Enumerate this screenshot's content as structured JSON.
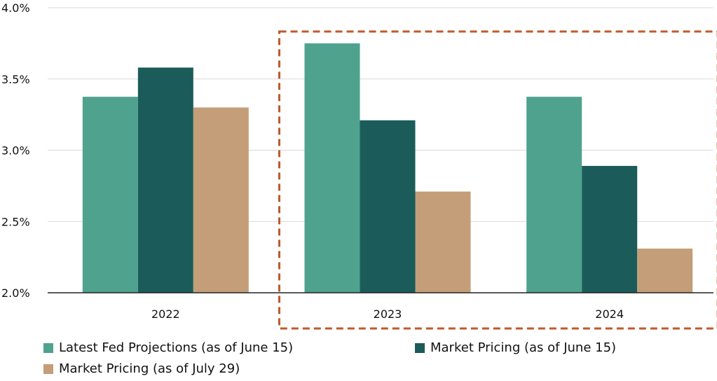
{
  "chart_data": {
    "type": "bar",
    "categories": [
      "2022",
      "2023",
      "2024"
    ],
    "series": [
      {
        "name": "Latest Fed Projections (as of June 15)",
        "values": [
          3.375,
          3.75,
          3.375
        ],
        "color": "#4fa28e"
      },
      {
        "name": "Market Pricing (as of June 15)",
        "values": [
          3.58,
          3.21,
          2.89
        ],
        "color": "#1b5c5a"
      },
      {
        "name": "Market Pricing (as of July 29)",
        "values": [
          3.3,
          2.71,
          2.31
        ],
        "color": "#c49e78"
      }
    ],
    "title": "",
    "xlabel": "",
    "ylabel": "",
    "ylim": [
      2.0,
      4.0
    ],
    "yticks": [
      "2.0%",
      "2.5%",
      "3.0%",
      "3.5%",
      "4.0%"
    ],
    "grid": true,
    "legend_position": "bottom",
    "highlight_categories": [
      "2023",
      "2024"
    ],
    "highlight_color": "#c0592b"
  }
}
